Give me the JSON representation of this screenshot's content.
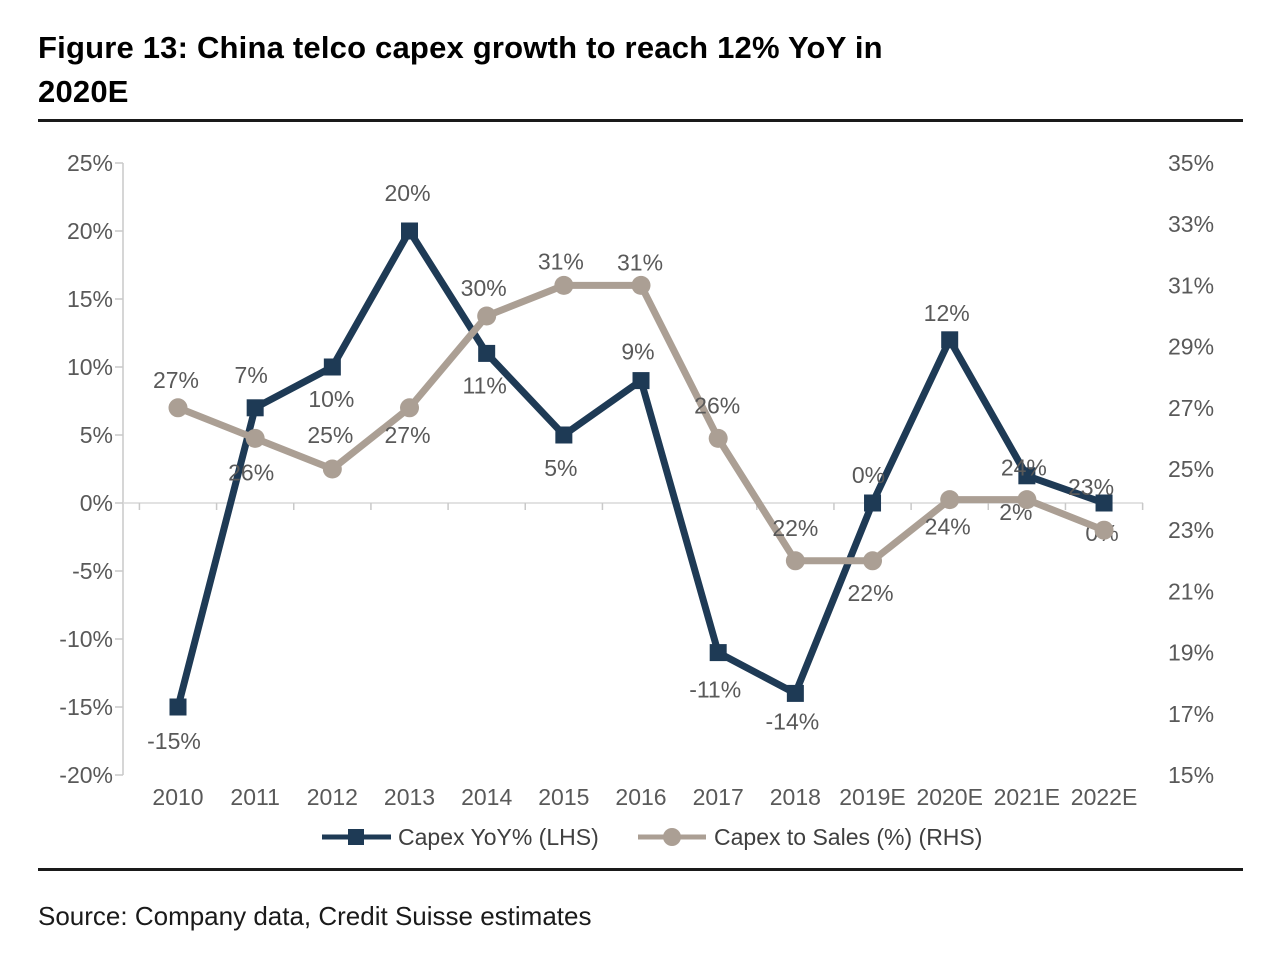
{
  "figure": {
    "title": "Figure 13: China telco capex growth to reach 12% YoY in 2020E",
    "title_lines": [
      "Figure 13: China telco capex growth to reach 12% YoY in",
      "2020E"
    ],
    "source": "Source: Company data, Credit Suisse estimates"
  },
  "chart_data": {
    "type": "line",
    "title": "Figure 13: China telco capex growth to reach 12% YoY in 2020E",
    "categories": [
      "2010",
      "2011",
      "2012",
      "2013",
      "2014",
      "2015",
      "2016",
      "2017",
      "2018",
      "2019E",
      "2020E",
      "2021E",
      "2022E"
    ],
    "left_axis": {
      "min": -20,
      "max": 25,
      "step": 5,
      "tick_labels": [
        "25%",
        "20%",
        "15%",
        "10%",
        "5%",
        "0%",
        "-5%",
        "-10%",
        "-15%",
        "-20%"
      ]
    },
    "right_axis": {
      "min": 15,
      "max": 35,
      "step": 2,
      "tick_labels": [
        "35%",
        "33%",
        "31%",
        "29%",
        "27%",
        "25%",
        "23%",
        "21%",
        "19%",
        "17%",
        "15%"
      ]
    },
    "grid": "zero-line-only",
    "legend_position": "bottom",
    "series": [
      {
        "name": "Capex YoY% (LHS)",
        "axis": "left",
        "marker": "square",
        "color": "#1e3a55",
        "values": [
          -15,
          7,
          10,
          20,
          11,
          5,
          9,
          -11,
          -14,
          0,
          12,
          2,
          0
        ],
        "labels": [
          "-15%",
          "7%",
          "10%",
          "20%",
          "11%",
          "5%",
          "9%",
          "-11%",
          "-14%",
          "0%",
          "12%",
          "2%",
          "0%"
        ],
        "label_offsets": [
          [
            -4,
            34
          ],
          [
            -4,
            -33
          ],
          [
            -1,
            32
          ],
          [
            -2,
            -38
          ],
          [
            -2,
            32
          ],
          [
            -3,
            33
          ],
          [
            -3,
            -29
          ],
          [
            -3,
            37
          ],
          [
            -3,
            28
          ],
          [
            -4,
            -28
          ],
          [
            -3,
            -27
          ],
          [
            -11,
            36
          ],
          [
            -2,
            30
          ]
        ]
      },
      {
        "name": "Capex to Sales (%) (RHS)",
        "axis": "right",
        "marker": "circle",
        "color": "#ab9f94",
        "values": [
          27,
          26,
          25,
          27,
          30,
          31,
          31,
          26,
          22,
          22,
          24,
          24,
          23
        ],
        "labels": [
          "27%",
          "26%",
          "25%",
          "27%",
          "30%",
          "31%",
          "31%",
          "26%",
          "22%",
          "22%",
          "24%",
          "24%",
          "23%"
        ],
        "label_offsets": [
          [
            -2,
            -28
          ],
          [
            -4,
            34
          ],
          [
            -2,
            -34
          ],
          [
            -2,
            27
          ],
          [
            -3,
            -28
          ],
          [
            -3,
            -24
          ],
          [
            -1,
            -23
          ],
          [
            -1,
            -33
          ],
          [
            0,
            -33
          ],
          [
            -2,
            32
          ],
          [
            -2,
            27
          ],
          [
            -3,
            -32
          ],
          [
            -13,
            -43
          ]
        ]
      }
    ],
    "colors": {
      "axis_line": "#c9c9c9",
      "zero_line": "#d9d9d9",
      "tick_text": "#595959",
      "data_label_text": "#595959",
      "legend_text": "#3f3f3f"
    }
  }
}
